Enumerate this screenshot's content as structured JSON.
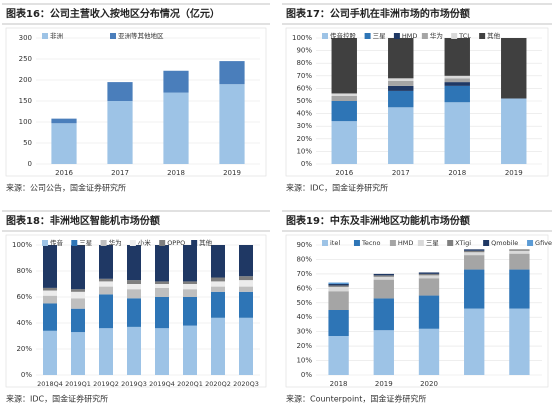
{
  "chart_data": [
    {
      "type": "bar",
      "stacked": true,
      "title": "图表16：公司主营收入按地区分布情况（亿元）",
      "source": "来源：公司公告，国金证券研究所",
      "categories": [
        "2016",
        "2017",
        "2018",
        "2019"
      ],
      "series": [
        {
          "name": "非洲",
          "color": "#9dc3e6",
          "values": [
            97,
            150,
            170,
            190
          ]
        },
        {
          "name": "亚洲等其他地区",
          "color": "#4a7ebb",
          "values": [
            11,
            45,
            52,
            55
          ]
        }
      ],
      "ylim": [
        0,
        300
      ],
      "yticks": [
        0,
        50,
        100,
        150,
        200,
        250,
        300
      ]
    },
    {
      "type": "bar",
      "stacked": true,
      "title": "图表17：公司手机在非洲市场的市场份额",
      "source": "来源：IDC，国金证券研究所",
      "categories": [
        "2016",
        "2017",
        "2018",
        "2019"
      ],
      "series": [
        {
          "name": "传音控股",
          "color": "#9dc3e6",
          "values": [
            34,
            45,
            49,
            52
          ]
        },
        {
          "name": "三星",
          "color": "#2e75b6",
          "values": [
            16,
            13,
            13,
            0
          ]
        },
        {
          "name": "HMD",
          "color": "#1f3864",
          "values": [
            0,
            4,
            3,
            0
          ]
        },
        {
          "name": "华为",
          "color": "#a5a5a5",
          "values": [
            4,
            4,
            3,
            0
          ]
        },
        {
          "name": "TCL",
          "color": "#d9d9d9",
          "values": [
            2,
            2,
            2,
            0
          ]
        },
        {
          "name": "其他",
          "color": "#404040",
          "values": [
            44,
            32,
            30,
            48
          ]
        }
      ],
      "ylim": [
        0,
        100
      ],
      "yticks": [
        {
          "value": 0,
          "label": "0%"
        },
        {
          "value": 10,
          "label": "10%"
        },
        {
          "value": 20,
          "label": "20%"
        },
        {
          "value": 30,
          "label": "30%"
        },
        {
          "value": 40,
          "label": "40%"
        },
        {
          "value": 50,
          "label": "50%"
        },
        {
          "value": 60,
          "label": "60%"
        },
        {
          "value": 70,
          "label": "70%"
        },
        {
          "value": 80,
          "label": "80%"
        },
        {
          "value": 90,
          "label": "90%"
        },
        {
          "value": 100,
          "label": "100%"
        }
      ]
    },
    {
      "type": "bar",
      "stacked": true,
      "title": "图表18：非洲地区智能机市场份额",
      "source": "来源：IDC，国金证券研究所",
      "categories": [
        "2018Q4",
        "2019Q1",
        "2019Q2",
        "2019Q3",
        "2019Q4",
        "2020Q1",
        "2020Q2",
        "2020Q3"
      ],
      "series": [
        {
          "name": "传音",
          "color": "#9dc3e6",
          "values": [
            34,
            33,
            36,
            37,
            36,
            38,
            44,
            44
          ]
        },
        {
          "name": "三星",
          "color": "#2e75b6",
          "values": [
            21,
            18,
            26,
            22,
            24,
            22,
            20,
            20
          ]
        },
        {
          "name": "华为",
          "color": "#bfbfbf",
          "values": [
            6,
            8,
            6,
            7,
            7,
            6,
            4,
            4
          ]
        },
        {
          "name": "小米",
          "color": "#ececec",
          "values": [
            4,
            5,
            4,
            4,
            3,
            4,
            4,
            5
          ]
        },
        {
          "name": "OPPO",
          "color": "#7f7f7f",
          "values": [
            2,
            2,
            2,
            3,
            2,
            2,
            3,
            3
          ]
        },
        {
          "name": "其他",
          "color": "#1f3864",
          "values": [
            33,
            34,
            26,
            27,
            28,
            28,
            25,
            24
          ]
        }
      ],
      "ylim": [
        0,
        100
      ],
      "yticks": [
        {
          "value": 0,
          "label": "0%"
        },
        {
          "value": 20,
          "label": "20%"
        },
        {
          "value": 40,
          "label": "40%"
        },
        {
          "value": 60,
          "label": "60%"
        },
        {
          "value": 80,
          "label": "80%"
        },
        {
          "value": 100,
          "label": "100%"
        }
      ]
    },
    {
      "type": "bar",
      "stacked": true,
      "title": "图表19：中东及非洲地区功能机市场份额",
      "source": "来源：Counterpoint，国金证券研究所",
      "categories": [
        "2018",
        "2019",
        "2020",
        null,
        null
      ],
      "series": [
        {
          "name": "itel",
          "color": "#9dc3e6",
          "values": [
            27,
            31,
            32,
            46,
            46
          ]
        },
        {
          "name": "Tecno",
          "color": "#2e75b6",
          "values": [
            18,
            22,
            23,
            27,
            27
          ]
        },
        {
          "name": "HMD",
          "color": "#a5a5a5",
          "values": [
            13,
            13,
            12,
            10,
            11
          ]
        },
        {
          "name": "三星",
          "color": "#d9d9d9",
          "values": [
            3,
            2,
            2,
            2,
            2
          ]
        },
        {
          "name": "XTigi",
          "color": "#7f7f7f",
          "values": [
            1,
            1,
            1,
            1,
            1
          ]
        },
        {
          "name": "Qmobile",
          "color": "#1f3864",
          "values": [
            1,
            1,
            1,
            1,
            0
          ]
        },
        {
          "name": "Gfive",
          "color": "#5b9bd5",
          "values": [
            1,
            0,
            0,
            0,
            0
          ]
        }
      ],
      "ylim": [
        0,
        90
      ],
      "yticks": [
        {
          "value": 0,
          "label": "0%"
        },
        {
          "value": 10,
          "label": "10%"
        },
        {
          "value": 20,
          "label": "20%"
        },
        {
          "value": 30,
          "label": "30%"
        },
        {
          "value": 40,
          "label": "40%"
        },
        {
          "value": 50,
          "label": "50%"
        },
        {
          "value": 60,
          "label": "60%"
        },
        {
          "value": 70,
          "label": "70%"
        },
        {
          "value": 80,
          "label": "80%"
        },
        {
          "value": 90,
          "label": "90%"
        }
      ]
    }
  ]
}
